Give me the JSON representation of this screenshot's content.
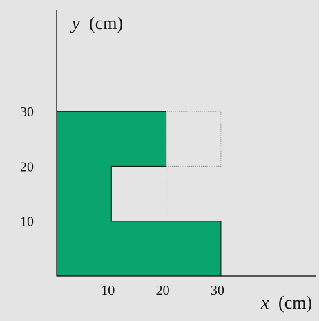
{
  "colors": {
    "shape_fill": "#0aa56c",
    "panel_background": "#e4e4e4",
    "axis": "#000000",
    "grid_lines": "#8c8c8c"
  },
  "axes": {
    "x": {
      "variable": "x",
      "unit": "(cm)",
      "ticks": [
        "10",
        "20",
        "30"
      ]
    },
    "y": {
      "variable": "y",
      "unit": "(cm)",
      "ticks": [
        "10",
        "20",
        "30"
      ]
    }
  },
  "shape": {
    "description_points_cm": [
      [
        0,
        0
      ],
      [
        30,
        0
      ],
      [
        30,
        10
      ],
      [
        10,
        10
      ],
      [
        10,
        20
      ],
      [
        20,
        20
      ],
      [
        20,
        30
      ],
      [
        0,
        30
      ]
    ]
  },
  "grid_extension": {
    "outline_points_cm": [
      [
        20,
        20
      ],
      [
        30,
        20
      ],
      [
        30,
        30
      ],
      [
        20,
        30
      ]
    ],
    "inner_lines_cm": [
      [
        [
          20,
          10
        ],
        [
          20,
          20
        ]
      ],
      [
        [
          20,
          20
        ],
        [
          30,
          20
        ]
      ]
    ]
  }
}
